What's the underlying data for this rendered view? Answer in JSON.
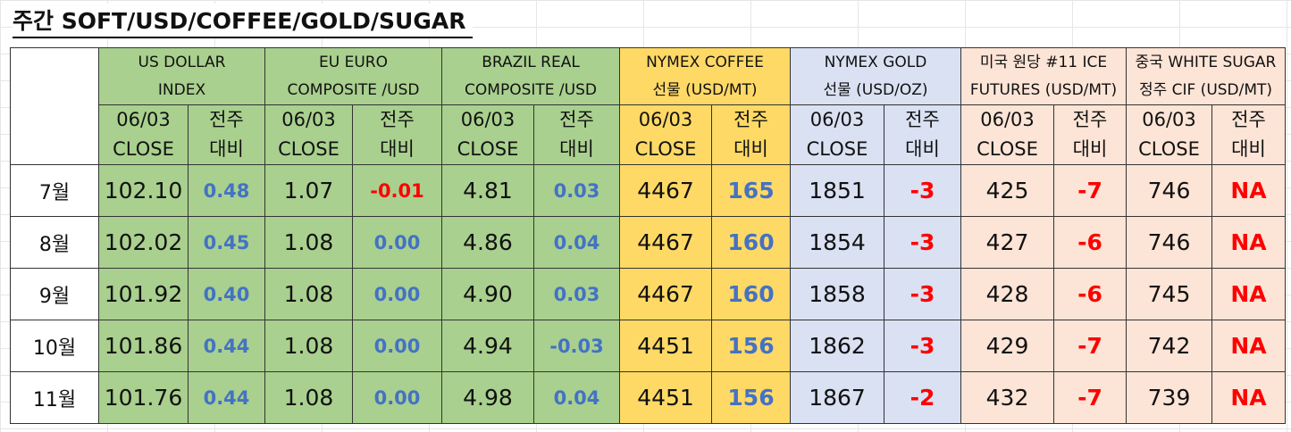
{
  "title": "주간 SOFT/USD/COFFEE/GOLD/SUGAR",
  "subheaders": {
    "close": [
      "06/03",
      "CLOSE"
    ],
    "change": [
      "전주",
      "대비"
    ]
  },
  "groups": [
    {
      "name_line1": "US DOLLAR",
      "name_line2": "INDEX",
      "color": "#a9d08e"
    },
    {
      "name_line1": "EU EURO",
      "name_line2": "COMPOSITE /USD",
      "color": "#a9d08e"
    },
    {
      "name_line1": "BRAZIL REAL",
      "name_line2": "COMPOSITE /USD",
      "color": "#a9d08e"
    },
    {
      "name_line1": "NYMEX COFFEE",
      "name_line2": "선물 (USD/MT)",
      "color": "#ffd966"
    },
    {
      "name_line1": "NYMEX GOLD",
      "name_line2": "선물 (USD/OZ)",
      "color": "#d9e1f2"
    },
    {
      "name_line1": "미국 원당 #11 ICE",
      "name_line2": "FUTURES (USD/MT)",
      "color": "#fce4d6"
    },
    {
      "name_line1": "중국 WHITE SUGAR",
      "name_line2": "정주 CIF (USD/MT)",
      "color": "#fce4d6"
    }
  ],
  "rows": [
    {
      "month": "7월",
      "cells": [
        [
          "102.10",
          "0.48"
        ],
        [
          "1.07",
          "-0.01"
        ],
        [
          "4.81",
          "0.03"
        ],
        [
          "4467",
          "165"
        ],
        [
          "1851",
          "-3"
        ],
        [
          "425",
          "-7"
        ],
        [
          "746",
          "NA"
        ]
      ]
    },
    {
      "month": "8월",
      "cells": [
        [
          "102.02",
          "0.45"
        ],
        [
          "1.08",
          "0.00"
        ],
        [
          "4.86",
          "0.04"
        ],
        [
          "4467",
          "160"
        ],
        [
          "1854",
          "-3"
        ],
        [
          "427",
          "-6"
        ],
        [
          "746",
          "NA"
        ]
      ]
    },
    {
      "month": "9월",
      "cells": [
        [
          "101.92",
          "0.40"
        ],
        [
          "1.08",
          "0.00"
        ],
        [
          "4.90",
          "0.03"
        ],
        [
          "4467",
          "160"
        ],
        [
          "1858",
          "-3"
        ],
        [
          "428",
          "-6"
        ],
        [
          "745",
          "NA"
        ]
      ]
    },
    {
      "month": "10월",
      "cells": [
        [
          "101.86",
          "0.44"
        ],
        [
          "1.08",
          "0.00"
        ],
        [
          "4.94",
          "-0.03"
        ],
        [
          "4451",
          "156"
        ],
        [
          "1862",
          "-3"
        ],
        [
          "429",
          "-7"
        ],
        [
          "742",
          "NA"
        ]
      ]
    },
    {
      "month": "11월",
      "cells": [
        [
          "101.76",
          "0.44"
        ],
        [
          "1.08",
          "0.00"
        ],
        [
          "4.98",
          "0.04"
        ],
        [
          "4451",
          "156"
        ],
        [
          "1867",
          "-2"
        ],
        [
          "432",
          "-7"
        ],
        [
          "739",
          "NA"
        ]
      ]
    }
  ],
  "colors": {
    "positive_change": "#4472c4",
    "negative_change": "#ff0000",
    "currency_bg": "#a9d08e",
    "coffee_bg": "#ffd966",
    "gold_bg": "#d9e1f2",
    "sugar_bg": "#fce4d6"
  }
}
